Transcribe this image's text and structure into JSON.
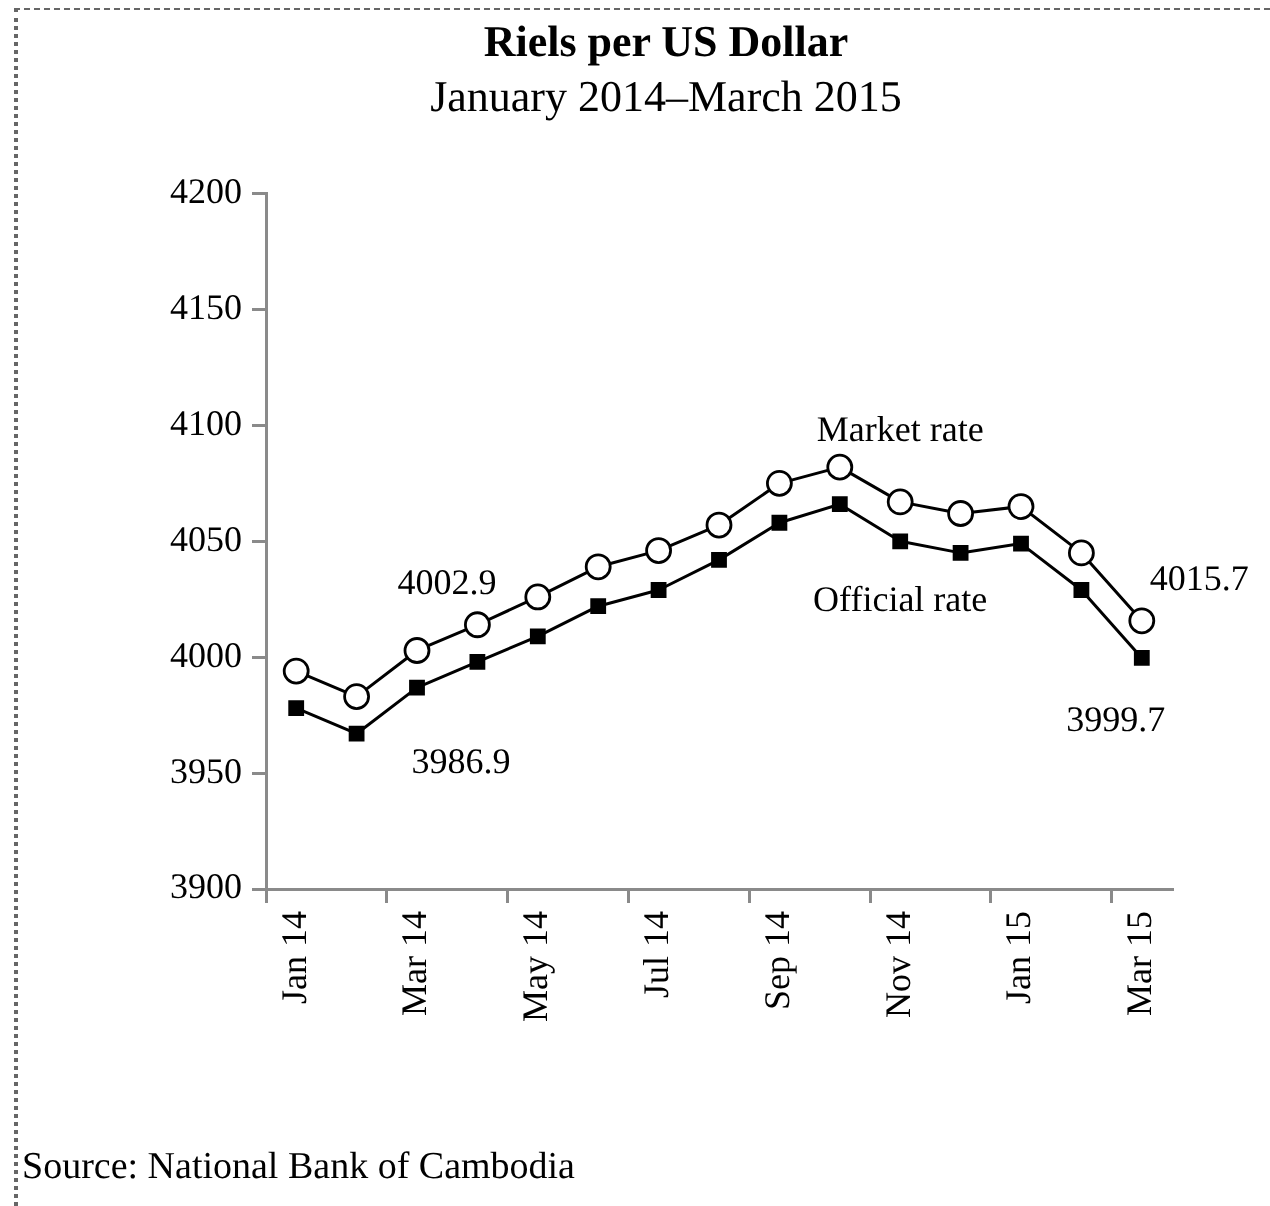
{
  "chart_data": {
    "type": "line",
    "title": "Riels per US Dollar",
    "subtitle": "January 2014–March 2015",
    "categories": [
      "Jan 14",
      null,
      "Mar 14",
      null,
      "May 14",
      null,
      "Jul 14",
      null,
      "Sep 14",
      null,
      "Nov 14",
      null,
      "Jan 15",
      null,
      "Mar 15"
    ],
    "series": [
      {
        "name": "Market rate",
        "color": "#000000",
        "marker": "circle",
        "values": [
          3994,
          3983,
          4002.9,
          4014,
          4026,
          4039,
          4046,
          4057,
          4075,
          4082,
          4067,
          4062,
          4065,
          4045,
          4015.7
        ],
        "value_labels": [
          null,
          null,
          "4002.9",
          null,
          null,
          null,
          null,
          null,
          null,
          null,
          null,
          null,
          null,
          null,
          "4015.7"
        ]
      },
      {
        "name": "Official rate",
        "color": "#000000",
        "marker": "square",
        "values": [
          3978,
          3967,
          3986.9,
          3998,
          4009,
          4022,
          4029,
          4042,
          4058,
          4066,
          4050,
          4045,
          4049,
          4029,
          3999.7
        ],
        "value_labels": [
          null,
          null,
          "3986.9",
          null,
          null,
          null,
          null,
          null,
          null,
          null,
          null,
          null,
          null,
          null,
          "3999.7"
        ]
      }
    ],
    "ylim": [
      3900,
      4200
    ],
    "yticks": [
      3900,
      3950,
      4000,
      4050,
      4100,
      4150,
      4200
    ],
    "grid": false,
    "legend": false,
    "line_style": "solid",
    "annotations": [
      "Source: National Bank of Cambodia"
    ]
  }
}
